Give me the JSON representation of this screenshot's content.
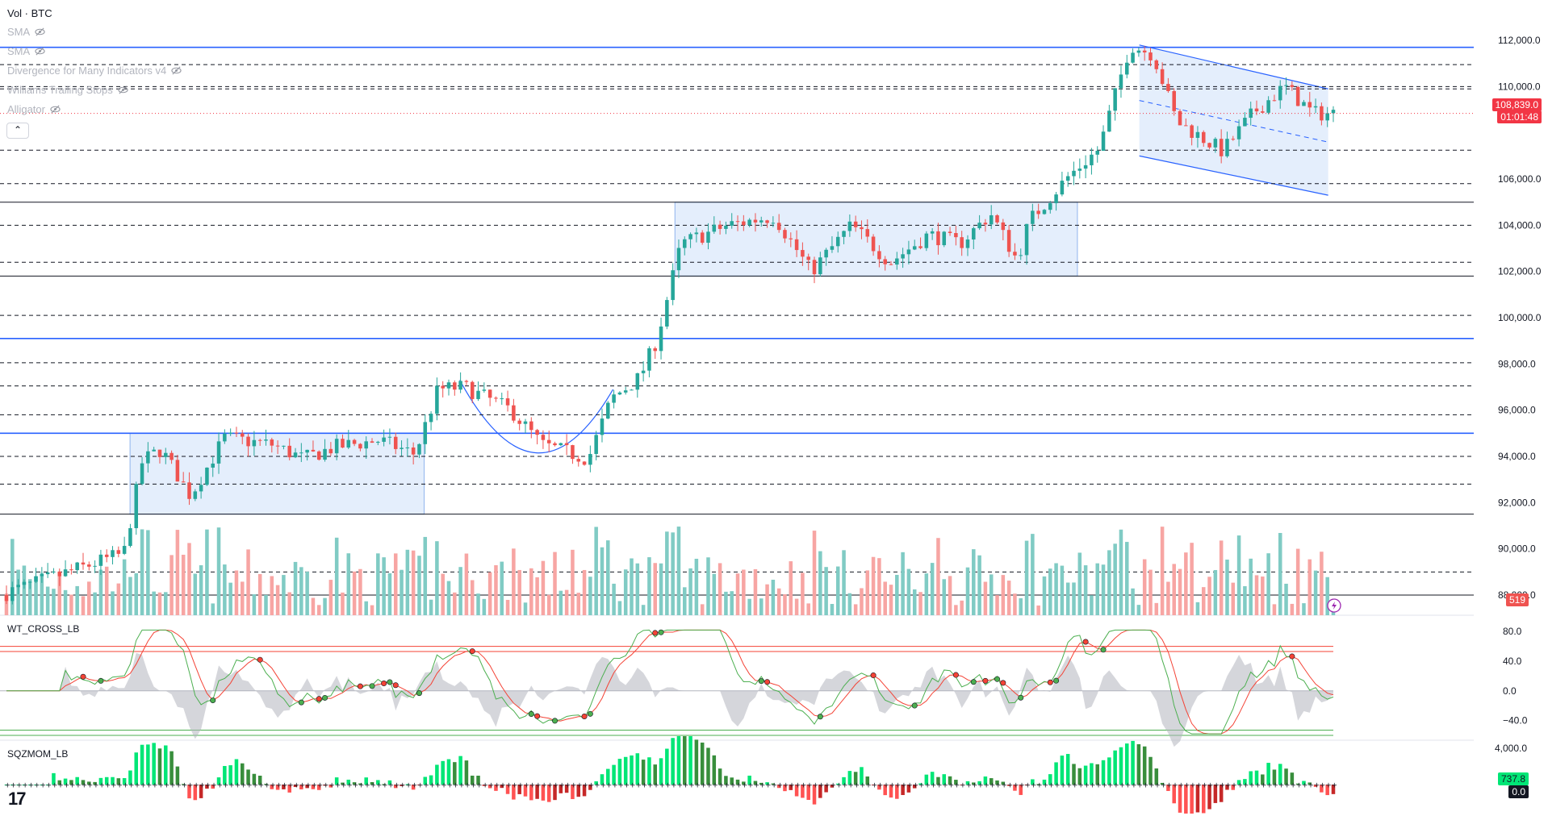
{
  "header": {
    "symbol_title": "Vol · BTC",
    "indicators": [
      {
        "name": "SMA",
        "icon": "eye-off-icon"
      },
      {
        "name": "SMA",
        "icon": "eye-off-icon"
      },
      {
        "name": "Divergence for Many Indicators v4",
        "icon": "eye-off-icon"
      },
      {
        "name": "Williams Trailing Stops",
        "icon": "eye-off-icon"
      },
      {
        "name": "Alligator",
        "icon": "eye-off-icon"
      }
    ],
    "collapse_icon": "chevron-up-icon"
  },
  "price_scale": {
    "ticks": [
      "112,000.0",
      "110,000.0",
      "108,000.0",
      "106,000.0",
      "104,000.0",
      "102,000.0",
      "100,000.0",
      "98,000.0",
      "96,000.0",
      "94,000.0",
      "92,000.0",
      "90,000.0",
      "88,000.0"
    ],
    "last_price": "108,839.0",
    "countdown": "01:01:48",
    "volume_value": "519"
  },
  "panels": {
    "wt_cross": {
      "title": "WT_CROSS_LB",
      "ticks": [
        "80.0",
        "40.0",
        "0.0",
        "−40.0"
      ]
    },
    "sqzmom": {
      "title": "SQZMOM_LB",
      "ticks": [
        "4,000.0"
      ],
      "value": "737.8",
      "zero_value": "0.0"
    }
  },
  "colors": {
    "bull": "#26a69a",
    "bear": "#ef5350",
    "blue_line": "#2962ff",
    "zone_fill": "#dbe8fb",
    "price_tag": "#f23645",
    "wt_green": "#4caf50",
    "wt_red": "#f44336",
    "mom_green": "#00e676",
    "mom_red": "#ff5252"
  },
  "chart_data": {
    "type": "candlestick",
    "symbol": "BTC",
    "price_range": [
      88000,
      112700
    ],
    "horizontal_levels_blue": [
      111700,
      99100,
      95000
    ],
    "horizontal_levels_black": [
      105000,
      101800,
      91500,
      88000
    ],
    "horizontal_levels_dashed": [
      110950,
      110000,
      109900,
      107250,
      105800,
      104000,
      102400,
      100100,
      98050,
      97050,
      95800,
      94000,
      92800,
      89000
    ],
    "consolidation_zones": [
      {
        "x_start": 0.084,
        "x_end": 0.274,
        "price_top": 95000,
        "price_bottom": 91500
      },
      {
        "x_start": 0.436,
        "x_end": 0.696,
        "price_top": 105000,
        "price_bottom": 101800
      }
    ],
    "descending_channel": {
      "x_start": 0.736,
      "x_end": 0.858,
      "upper": [
        111800,
        109900
      ],
      "lower": [
        107000,
        105300
      ]
    },
    "cup_pattern": {
      "x_start": 0.297,
      "x_end": 0.396,
      "bottom_price": 93300
    },
    "price_path": [
      [
        0,
        88000
      ],
      [
        0.08,
        89800
      ],
      [
        0.092,
        93800
      ],
      [
        0.104,
        94300
      ],
      [
        0.123,
        92300
      ],
      [
        0.145,
        94800
      ],
      [
        0.176,
        94500
      ],
      [
        0.196,
        93900
      ],
      [
        0.216,
        94400
      ],
      [
        0.245,
        94700
      ],
      [
        0.268,
        94100
      ],
      [
        0.283,
        96900
      ],
      [
        0.3,
        97000
      ],
      [
        0.33,
        96000
      ],
      [
        0.35,
        94500
      ],
      [
        0.38,
        93900
      ],
      [
        0.395,
        96500
      ],
      [
        0.413,
        97400
      ],
      [
        0.424,
        99000
      ],
      [
        0.44,
        103200
      ],
      [
        0.47,
        104000
      ],
      [
        0.5,
        104400
      ],
      [
        0.524,
        102000
      ],
      [
        0.55,
        104000
      ],
      [
        0.575,
        102400
      ],
      [
        0.6,
        103600
      ],
      [
        0.62,
        103200
      ],
      [
        0.64,
        104500
      ],
      [
        0.657,
        102500
      ],
      [
        0.665,
        104200
      ],
      [
        0.69,
        106100
      ],
      [
        0.71,
        107300
      ],
      [
        0.73,
        111800
      ],
      [
        0.745,
        111400
      ],
      [
        0.76,
        108500
      ],
      [
        0.79,
        107200
      ],
      [
        0.81,
        108900
      ],
      [
        0.83,
        110000
      ],
      [
        0.848,
        108839
      ]
    ],
    "last_price": 108839,
    "volume_last": 519,
    "wt_cross_range": [
      -60,
      90
    ],
    "sqzmom_last": 737.8
  }
}
